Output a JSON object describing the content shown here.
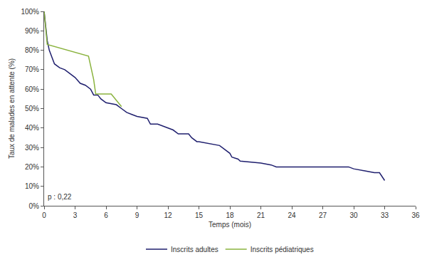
{
  "chart_data": {
    "type": "line",
    "x_label": "Temps (mois)",
    "y_label": "Taux de malades en attente (%)",
    "annotation": "p : 0,22",
    "legend": "bottom",
    "grid": false,
    "xlim": [
      0,
      36
    ],
    "xticks": [
      0,
      3,
      6,
      9,
      12,
      15,
      18,
      21,
      24,
      27,
      30,
      33,
      36
    ],
    "ylim": [
      0,
      100
    ],
    "yticks": [
      {
        "value": 0,
        "label": "0%"
      },
      {
        "value": 10,
        "label": "10%"
      },
      {
        "value": 20,
        "label": "20%"
      },
      {
        "value": 30,
        "label": "30%"
      },
      {
        "value": 40,
        "label": "40%"
      },
      {
        "value": 50,
        "label": "50%"
      },
      {
        "value": 60,
        "label": "60%"
      },
      {
        "value": 70,
        "label": "70%"
      },
      {
        "value": 80,
        "label": "80%"
      },
      {
        "value": 90,
        "label": "90%"
      },
      {
        "value": 100,
        "label": "100%"
      }
    ],
    "series": [
      {
        "name": "Inscrits adultes",
        "color": "#1f1f6e",
        "x": [
          0,
          0.1,
          0.2,
          0.3,
          0.5,
          0.8,
          1,
          1.5,
          2,
          2.5,
          3,
          3.5,
          4,
          4.5,
          4.8,
          5.2,
          5.5,
          6,
          7,
          7.5,
          8,
          8.5,
          9,
          10,
          10.3,
          11,
          11.5,
          12,
          12.5,
          13,
          14,
          14.3,
          14.8,
          15,
          16,
          17,
          17.5,
          18,
          18.2,
          18.8,
          19,
          20,
          21,
          22,
          22.5,
          29.5,
          30,
          31,
          32,
          32.5,
          33
        ],
        "values": [
          100,
          95,
          90,
          85,
          80,
          76,
          73,
          71,
          70,
          68,
          66,
          63,
          62,
          60,
          57,
          57,
          55,
          53,
          52,
          50,
          48,
          47,
          46,
          45,
          42,
          42,
          41,
          40,
          39,
          37,
          37,
          35,
          33,
          33,
          32,
          31,
          29,
          27,
          25,
          24,
          23,
          22.5,
          22,
          21,
          20,
          20,
          19,
          18,
          17,
          17,
          13
        ]
      },
      {
        "name": "Inscrits pédiatriques",
        "color": "#8ab33e",
        "x": [
          0,
          0.3,
          4.3,
          4.8,
          5.0,
          6.5,
          7.5
        ],
        "values": [
          100,
          83,
          77,
          65,
          57.5,
          57.5,
          51
        ]
      }
    ]
  }
}
